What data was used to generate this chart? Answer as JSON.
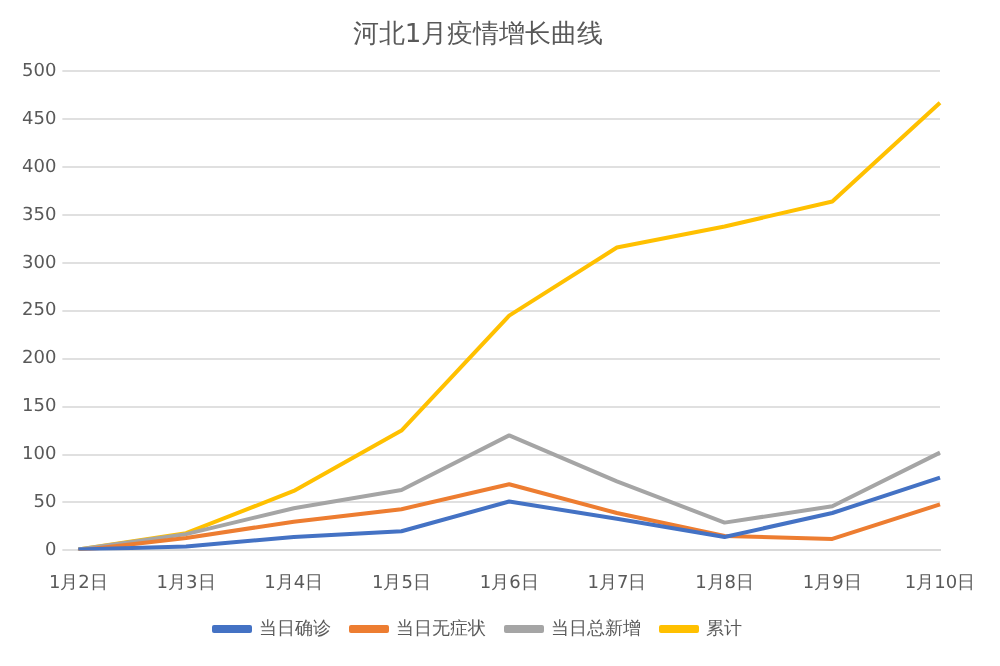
{
  "chart_data": {
    "type": "line",
    "title": "河北1月疫情增长曲线",
    "categories": [
      "1月2日",
      "1月3日",
      "1月4日",
      "1月5日",
      "1月6日",
      "1月7日",
      "1月8日",
      "1月9日",
      "1月10日"
    ],
    "series": [
      {
        "name": "当日确诊",
        "color": "#4472c4",
        "values": [
          1,
          4,
          14,
          20,
          51,
          33,
          14,
          39,
          76
        ]
      },
      {
        "name": "当日无症状",
        "color": "#ed7d31",
        "values": [
          0,
          13,
          30,
          43,
          69,
          39,
          15,
          12,
          48
        ]
      },
      {
        "name": "当日总新增",
        "color": "#a5a5a5",
        "values": [
          1,
          17,
          44,
          63,
          120,
          72,
          29,
          46,
          102
        ]
      },
      {
        "name": "累计",
        "color": "#ffc000",
        "values": [
          1,
          18,
          62,
          125,
          245,
          316,
          338,
          364,
          467
        ]
      }
    ],
    "ylim": [
      0,
      500
    ],
    "yticks": [
      0,
      50,
      100,
      150,
      200,
      250,
      300,
      350,
      400,
      450,
      500
    ],
    "grid": "y",
    "legend": "bottom",
    "marker": "none",
    "line_style": "solid"
  }
}
